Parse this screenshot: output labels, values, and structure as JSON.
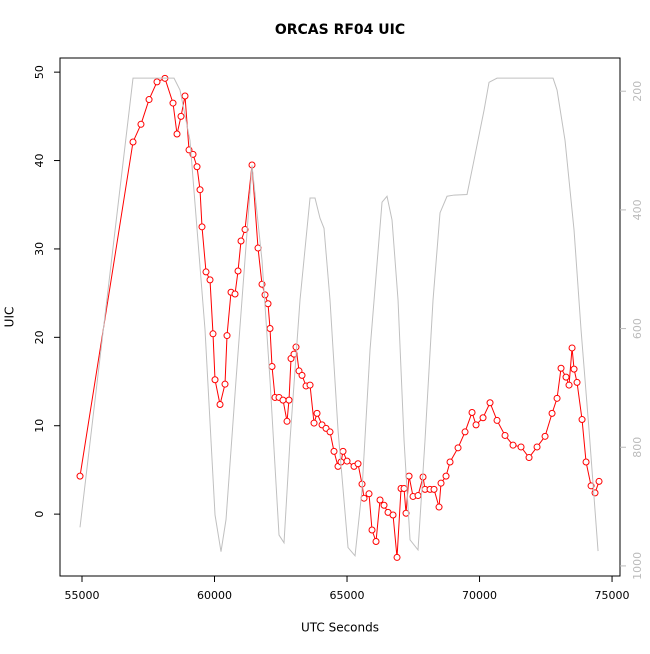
{
  "chart_data": {
    "type": "line",
    "title": "ORCAS RF04 UIC",
    "x_label": "UTC Seconds",
    "y_label": "UIC",
    "xlim": [
      54170,
      75300
    ],
    "ylim": [
      -7.0,
      51.6
    ],
    "y2lim": [
      1017,
      144
    ],
    "xticks": [
      55000,
      60000,
      65000,
      70000,
      75000
    ],
    "yticks": [
      0,
      10,
      20,
      30,
      40,
      50
    ],
    "y2ticks": [
      200,
      400,
      600,
      800,
      1000
    ],
    "series": [
      {
        "color": "#ff0000",
        "markers": true,
        "x": [
          54925,
          56925,
          57225,
          57530,
          57830,
          58130,
          58434,
          58585,
          58736,
          58887,
          59038,
          59189,
          59340,
          59453,
          59528,
          59679,
          59830,
          59943,
          60019,
          60208,
          60396,
          60472,
          60623,
          60774,
          60887,
          61000,
          61151,
          61415,
          61642,
          61792,
          61906,
          62019,
          62094,
          62170,
          62283,
          62434,
          62585,
          62736,
          62811,
          62887,
          63000,
          63075,
          63189,
          63302,
          63453,
          63604,
          63755,
          63868,
          64057,
          64208,
          64358,
          64509,
          64660,
          64774,
          64849,
          65000,
          65264,
          65415,
          65566,
          65642,
          65830,
          65943,
          66094,
          66245,
          66396,
          66547,
          66736,
          66887,
          67038,
          67151,
          67226,
          67340,
          67491,
          67679,
          67868,
          67943,
          68132,
          68283,
          68472,
          68547,
          68736,
          68887,
          69189,
          69453,
          69717,
          69868,
          70132,
          70396,
          70660,
          70962,
          71264,
          71566,
          71868,
          72170,
          72472,
          72736,
          72925,
          73075,
          73264,
          73377,
          73491,
          73566,
          73679,
          73868,
          74019,
          74208,
          74358,
          74509
        ],
        "values": [
          4.3,
          42.1,
          44.1,
          46.9,
          48.9,
          49.3,
          46.5,
          43.0,
          45.0,
          47.3,
          41.2,
          40.7,
          39.3,
          36.7,
          32.5,
          27.4,
          26.5,
          20.4,
          15.2,
          12.4,
          14.7,
          20.2,
          25.1,
          24.9,
          27.5,
          30.9,
          32.2,
          39.5,
          30.1,
          26.0,
          24.8,
          23.8,
          21.0,
          16.7,
          13.2,
          13.2,
          12.9,
          10.5,
          12.9,
          17.6,
          18.1,
          18.9,
          16.2,
          15.7,
          14.5,
          14.6,
          10.3,
          11.4,
          10.1,
          9.7,
          9.3,
          7.1,
          5.4,
          5.9,
          7.1,
          6.0,
          5.4,
          5.7,
          3.4,
          1.8,
          2.3,
          -1.8,
          -3.1,
          1.6,
          1.0,
          0.2,
          -0.1,
          -4.9,
          2.9,
          2.9,
          0.1,
          4.3,
          2.0,
          2.1,
          4.2,
          2.8,
          2.8,
          2.8,
          0.8,
          3.5,
          4.3,
          5.9,
          7.5,
          9.3,
          11.5,
          10.1,
          10.9,
          12.6,
          10.6,
          8.9,
          7.8,
          7.6,
          6.4,
          7.6,
          8.8,
          11.4,
          13.1,
          16.5,
          15.5,
          14.6,
          18.8,
          16.4,
          14.9,
          10.7,
          5.9,
          3.2,
          2.4,
          3.7
        ]
      },
      {
        "color": "#c0c0c0",
        "axis": "y2",
        "x": [
          54925,
          56925,
          57868,
          58472,
          58698,
          59075,
          59642,
          60019,
          60245,
          60434,
          60811,
          61415,
          61792,
          62094,
          62434,
          62623,
          62849,
          63226,
          63604,
          63792,
          63981,
          64132,
          64358,
          64660,
          65038,
          65302,
          65566,
          65868,
          66321,
          66509,
          66698,
          66925,
          67151,
          67377,
          67679,
          67943,
          68245,
          68509,
          68774,
          69038,
          69528,
          69792,
          70170,
          70358,
          70660,
          71491,
          72774,
          72925,
          73226,
          73566,
          73830,
          74132,
          74472
        ],
        "values": [
          935,
          178,
          178,
          178,
          198,
          283,
          602,
          914,
          976,
          922,
          687,
          325,
          485,
          687,
          948,
          961,
          788,
          552,
          380,
          380,
          414,
          431,
          552,
          771,
          969,
          983,
          872,
          636,
          387,
          377,
          417,
          552,
          788,
          956,
          973,
          788,
          552,
          405,
          377,
          375,
          374,
          316,
          232,
          185,
          178,
          178,
          178,
          198,
          283,
          434,
          602,
          771,
          975
        ]
      }
    ]
  }
}
